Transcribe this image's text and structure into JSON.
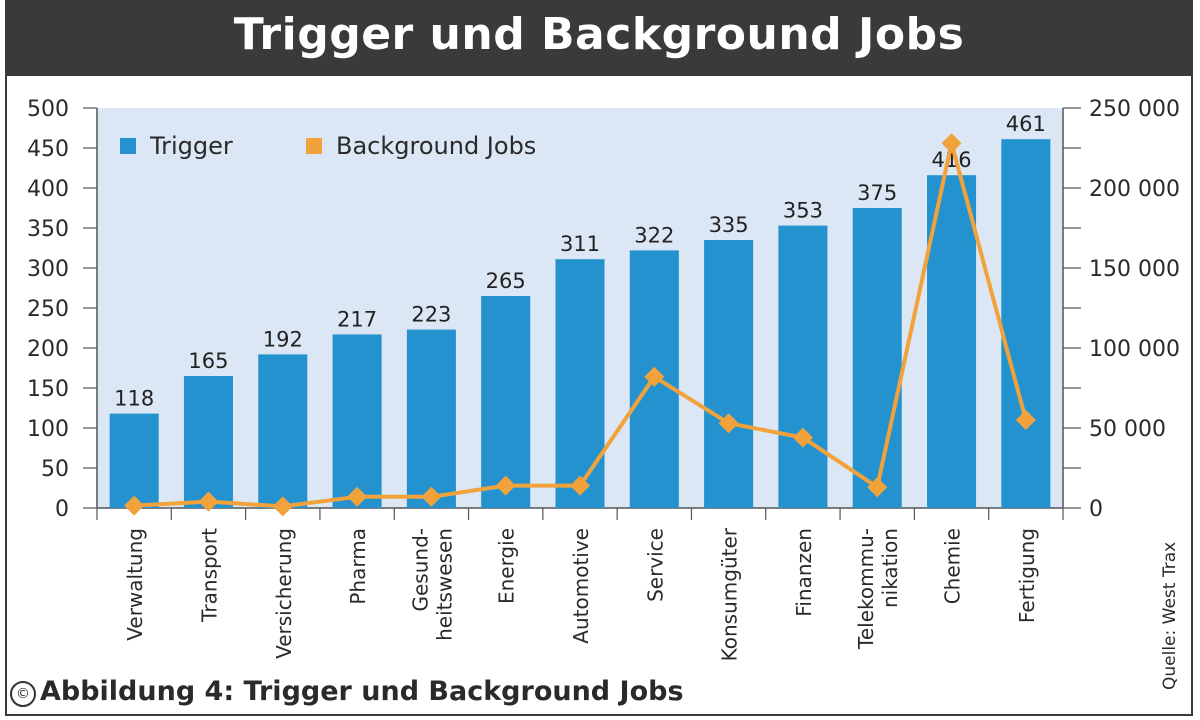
{
  "title": "Trigger und Background Jobs",
  "caption": "Abbildung 4: Trigger und Background Jobs",
  "copyright_symbol": "©",
  "source": "Quelle: West Trax",
  "colors": {
    "bar": "#2592d0",
    "line": "#f2a23a",
    "plot_bg": "#dbe7f4",
    "header": "#3a3a3a"
  },
  "chart_data": {
    "type": "bar",
    "title": "Trigger und Background Jobs",
    "categories": [
      [
        "Verwaltung"
      ],
      [
        "Transport"
      ],
      [
        "Versicherung"
      ],
      [
        "Pharma"
      ],
      [
        "Gesund-",
        "heitswesen"
      ],
      [
        "Energie"
      ],
      [
        "Automotive"
      ],
      [
        "Service"
      ],
      [
        "Konsumgüter"
      ],
      [
        "Finanzen"
      ],
      [
        "Telekommu-",
        "nikation"
      ],
      [
        "Chemie"
      ],
      [
        "Fertigung"
      ]
    ],
    "series": [
      {
        "name": "Trigger",
        "type": "bar",
        "axis": "left",
        "values": [
          118,
          165,
          192,
          217,
          223,
          265,
          311,
          322,
          335,
          353,
          375,
          416,
          461
        ],
        "data_labels": [
          "118",
          "165",
          "192",
          "217",
          "223",
          "265",
          "311",
          "322",
          "335",
          "353",
          "375",
          "416",
          "461"
        ]
      },
      {
        "name": "Background Jobs",
        "type": "line",
        "axis": "right",
        "marker": "diamond",
        "values": [
          1500,
          4000,
          1000,
          7000,
          7000,
          14000,
          14000,
          82000,
          53000,
          44000,
          13000,
          228000,
          55000
        ]
      }
    ],
    "y_left": {
      "range": [
        0,
        500
      ],
      "ticks": [
        "0",
        "50",
        "100",
        "150",
        "200",
        "250",
        "300",
        "350",
        "400",
        "450",
        "500"
      ]
    },
    "y_right": {
      "range": [
        0,
        250000
      ],
      "ticks": [
        "0",
        "50 000",
        "100 000",
        "150 000",
        "200 000",
        "250 000"
      ]
    },
    "legend": {
      "placement": "top-left",
      "items": [
        "Trigger",
        "Background Jobs"
      ]
    },
    "grid": false
  }
}
